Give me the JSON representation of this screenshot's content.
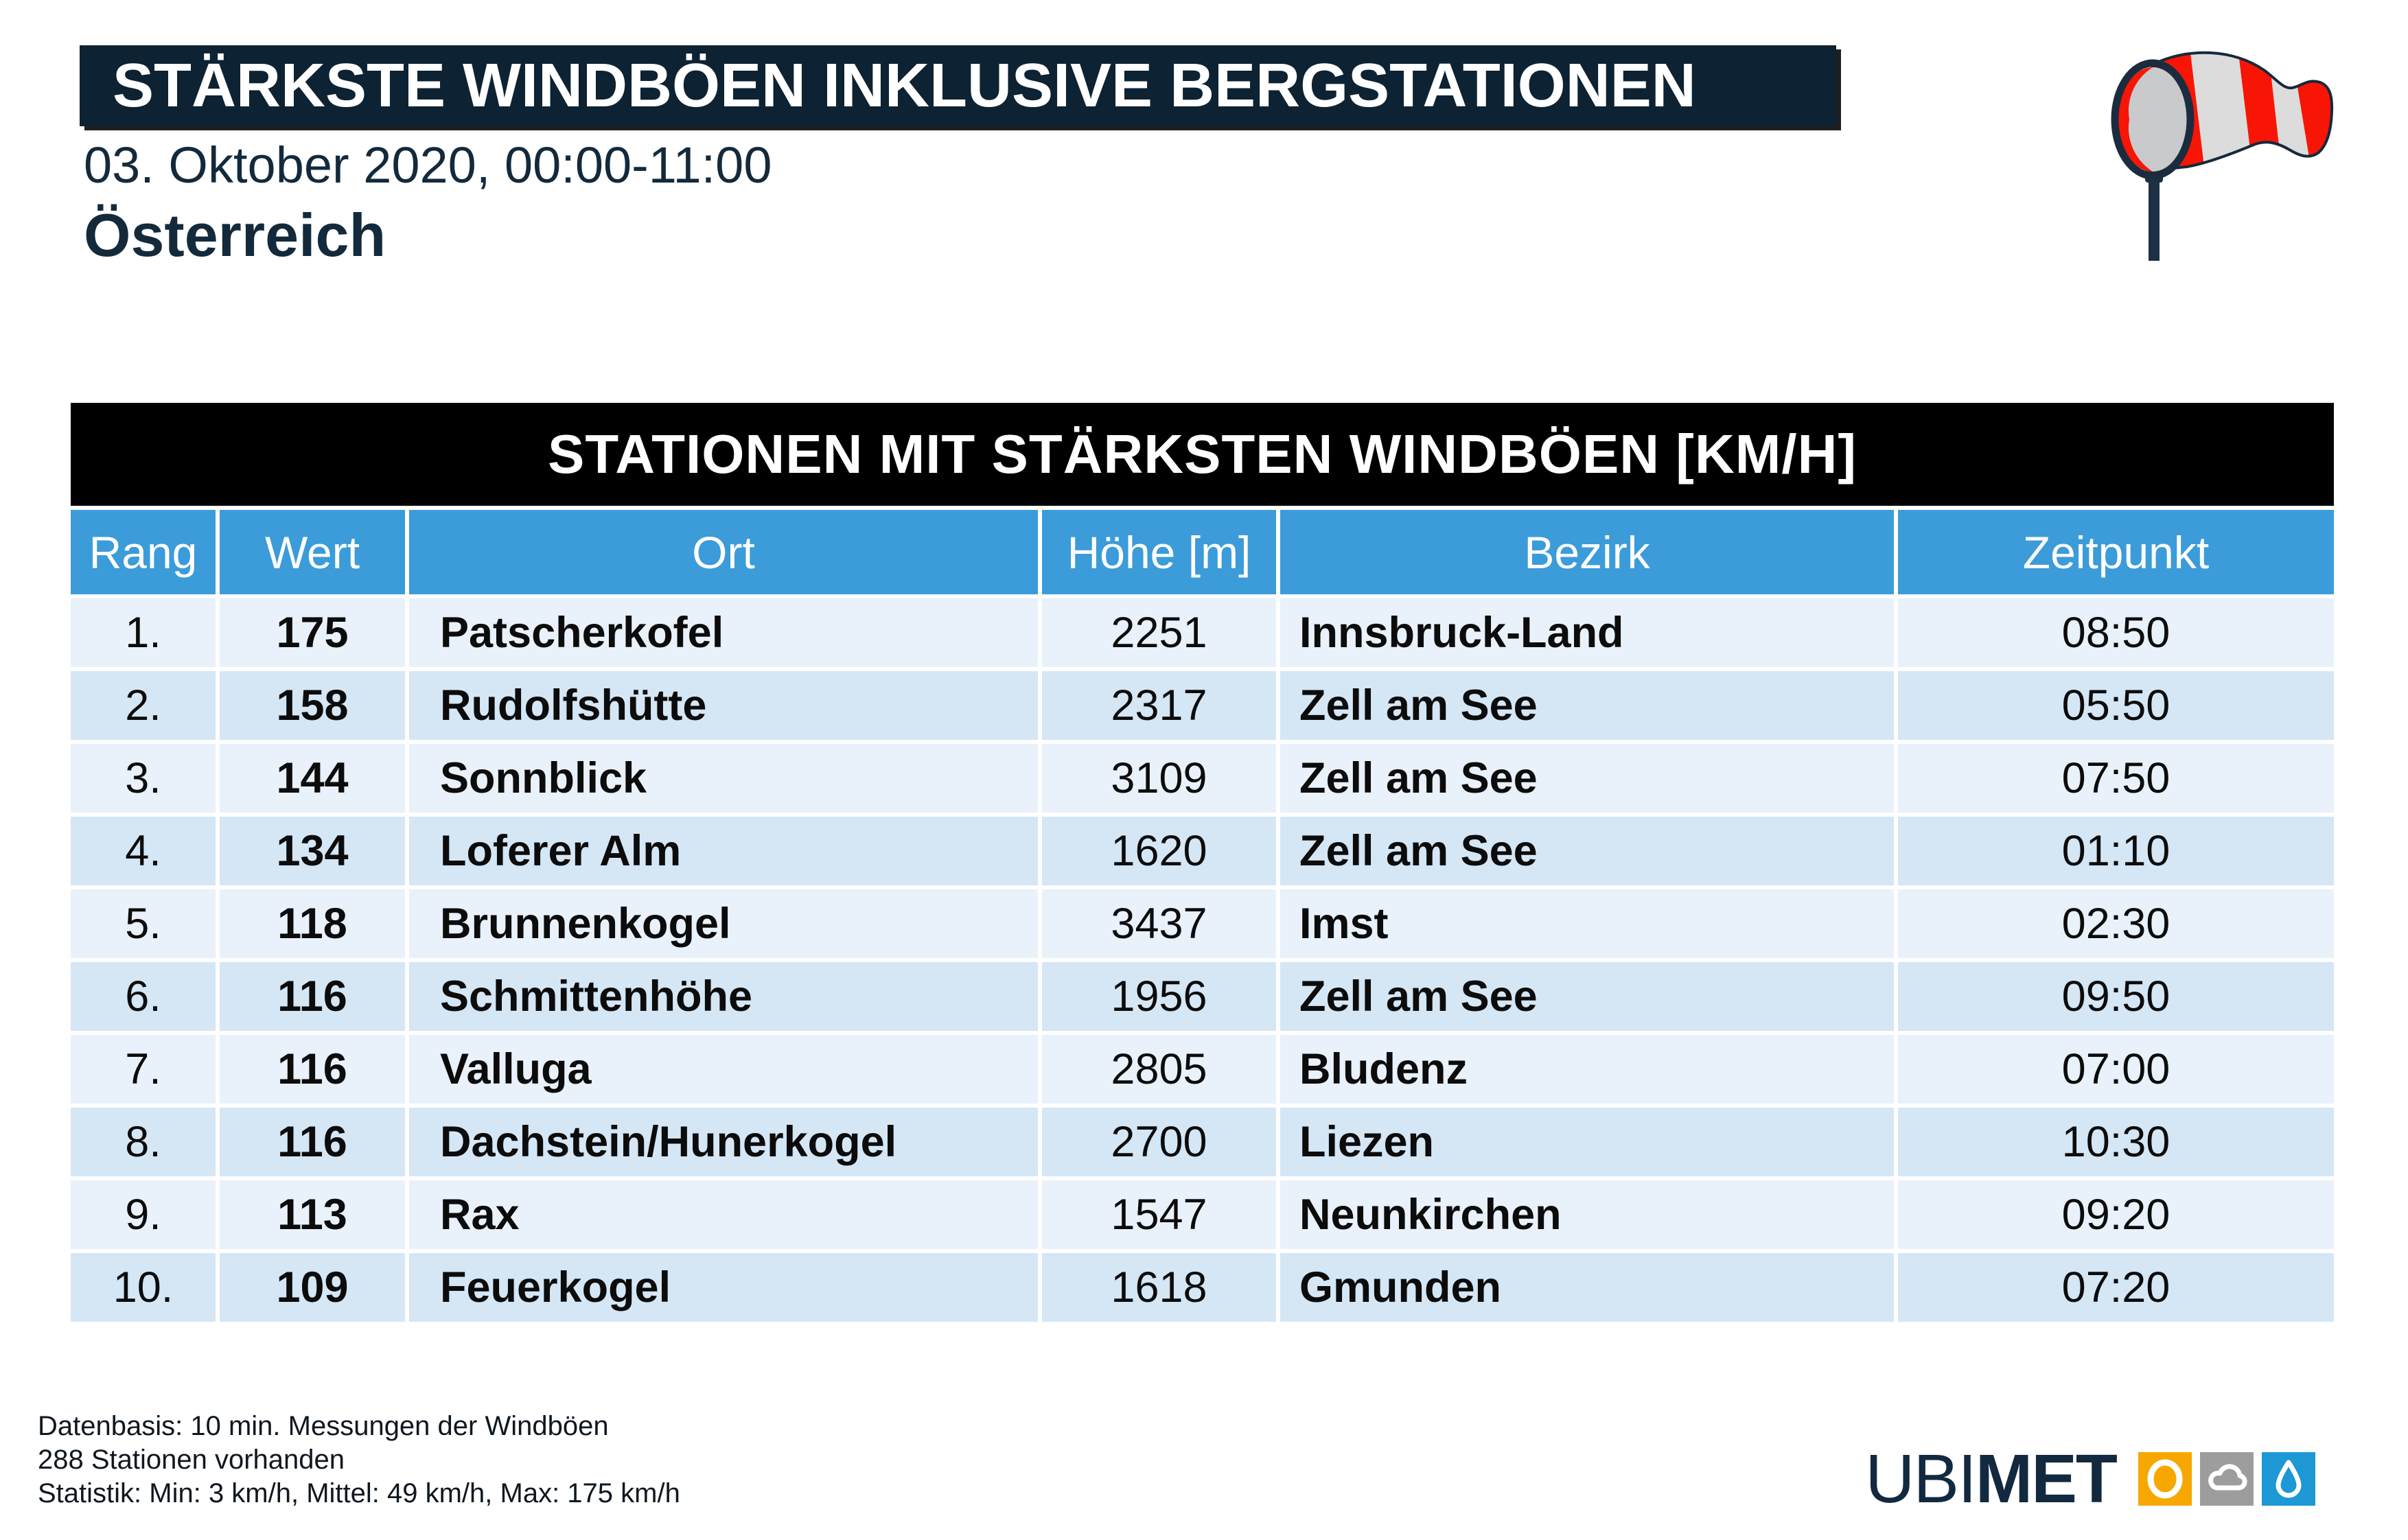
{
  "header": {
    "title": "STÄRKSTE WINDBÖEN INKLUSIVE BERGSTATIONEN",
    "subtitle": "03. Oktober 2020, 00:00-11:00",
    "region": "Österreich"
  },
  "table": {
    "title": "STATIONEN MIT STÄRKSTEN WINDBÖEN [KM/H]",
    "columns": [
      "Rang",
      "Wert",
      "Ort",
      "Höhe [m]",
      "Bezirk",
      "Zeitpunkt"
    ],
    "rows": [
      [
        "1.",
        "175",
        "Patscherkofel",
        "2251",
        "Innsbruck-Land",
        "08:50"
      ],
      [
        "2.",
        "158",
        "Rudolfshütte",
        "2317",
        "Zell am See",
        "05:50"
      ],
      [
        "3.",
        "144",
        "Sonnblick",
        "3109",
        "Zell am See",
        "07:50"
      ],
      [
        "4.",
        "134",
        "Loferer Alm",
        "1620",
        "Zell am See",
        "01:10"
      ],
      [
        "5.",
        "118",
        "Brunnenkogel",
        "3437",
        "Imst",
        "02:30"
      ],
      [
        "6.",
        "116",
        "Schmittenhöhe",
        "1956",
        "Zell am See",
        "09:50"
      ],
      [
        "7.",
        "116",
        "Valluga",
        "2805",
        "Bludenz",
        "07:00"
      ],
      [
        "8.",
        "116",
        "Dachstein/Hunerkogel",
        "2700",
        "Liezen",
        "10:30"
      ],
      [
        "9.",
        "113",
        "Rax",
        "1547",
        "Neunkirchen",
        "09:20"
      ],
      [
        "10.",
        "109",
        "Feuerkogel",
        "1618",
        "Gmunden",
        "07:20"
      ]
    ]
  },
  "chart_data": {
    "type": "table",
    "title": "STATIONEN MIT STÄRKSTEN WINDBÖEN [KM/H]",
    "columns": [
      "Rang",
      "Wert",
      "Ort",
      "Höhe [m]",
      "Bezirk",
      "Zeitpunkt"
    ],
    "rows": [
      [
        "1.",
        175,
        "Patscherkofel",
        2251,
        "Innsbruck-Land",
        "08:50"
      ],
      [
        "2.",
        158,
        "Rudolfshütte",
        2317,
        "Zell am See",
        "05:50"
      ],
      [
        "3.",
        144,
        "Sonnblick",
        3109,
        "Zell am See",
        "07:50"
      ],
      [
        "4.",
        134,
        "Loferer Alm",
        1620,
        "Zell am See",
        "01:10"
      ],
      [
        "5.",
        118,
        "Brunnenkogel",
        3437,
        "Imst",
        "02:30"
      ],
      [
        "6.",
        116,
        "Schmittenhöhe",
        1956,
        "Zell am See",
        "09:50"
      ],
      [
        "7.",
        116,
        "Valluga",
        2805,
        "Bludenz",
        "07:00"
      ],
      [
        "8.",
        116,
        "Dachstein/Hunerkogel",
        2700,
        "Liezen",
        "10:30"
      ],
      [
        "9.",
        113,
        "Rax",
        1547,
        "Neunkirchen",
        "09:20"
      ],
      [
        "10.",
        109,
        "Feuerkogel",
        1618,
        "Gmunden",
        "07:20"
      ]
    ]
  },
  "footer": {
    "line1": "Datenbasis: 10 min. Messungen der Windböen",
    "line2": "288 Stationen vorhanden",
    "line3": "Statistik: Min: 3 km/h, Mittel: 49 km/h, Max: 175 km/h"
  },
  "logo": {
    "text_light": "UBI",
    "text_bold": "MET"
  },
  "colors": {
    "title_bar_bg": "#0d2232",
    "navy_text": "#132a3c",
    "table_title_bg": "#000000",
    "header_row_bg": "#3b9cd9",
    "row_light": "#e9f1fa",
    "row_dark": "#d5e6f5",
    "windsock_red": "#f81505",
    "windsock_stripe": "#dcdcdc",
    "logo_sun_bg": "#f6a800",
    "logo_cloud_bg": "#9d9d9d",
    "logo_drop_bg": "#1e97d5"
  }
}
